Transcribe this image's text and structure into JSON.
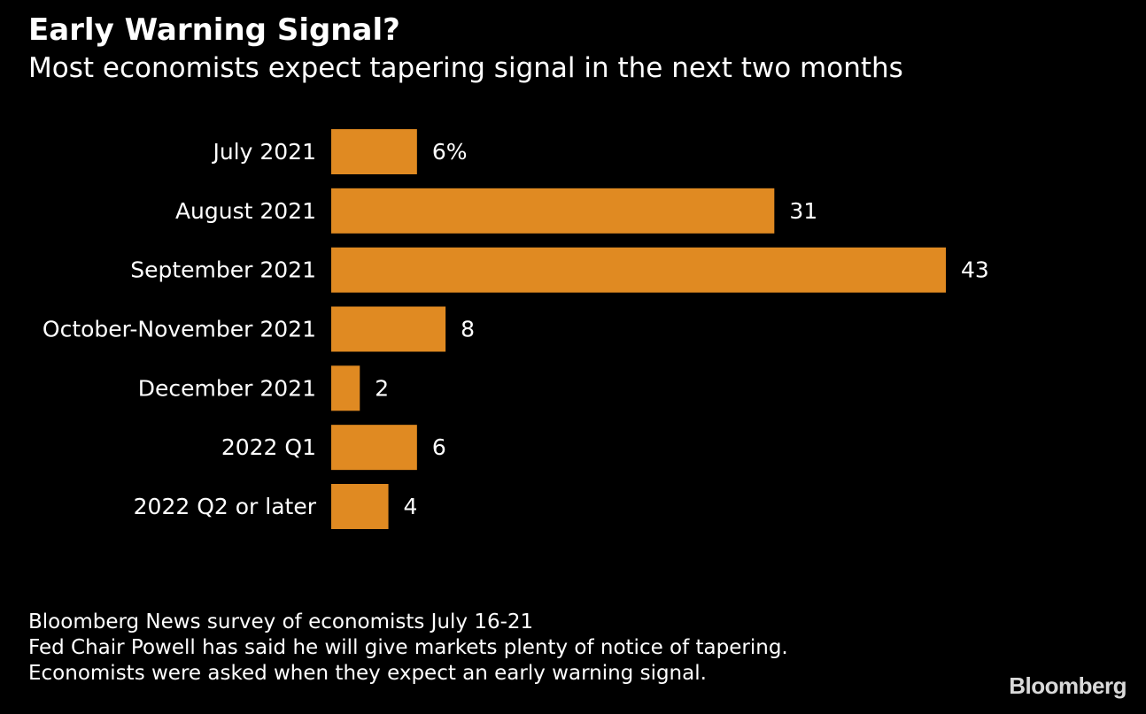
{
  "title": "Early Warning Signal?",
  "subtitle": "Most economists expect tapering signal in the next two months",
  "chart_data": {
    "type": "bar",
    "orientation": "horizontal",
    "categories": [
      "July 2021",
      "August 2021",
      "September 2021",
      "October-November 2021",
      "December 2021",
      "2022 Q1",
      "2022 Q2 or later"
    ],
    "values": [
      6,
      31,
      43,
      8,
      2,
      6,
      4
    ],
    "value_labels": [
      "6%",
      "31",
      "43",
      "8",
      "2",
      "6",
      "4"
    ],
    "xlim": [
      0,
      43
    ],
    "bar_color": "#e08a22",
    "grid": false,
    "legend": "none"
  },
  "footnotes": [
    "Bloomberg News survey of economists July 16-21",
    "Fed Chair Powell has said he will give markets plenty of notice of tapering.",
    "Economists were asked when they expect an early warning signal."
  ],
  "brand": "Bloomberg",
  "colors": {
    "background": "#000000",
    "text": "#ffffff",
    "bar": "#e08a22"
  }
}
